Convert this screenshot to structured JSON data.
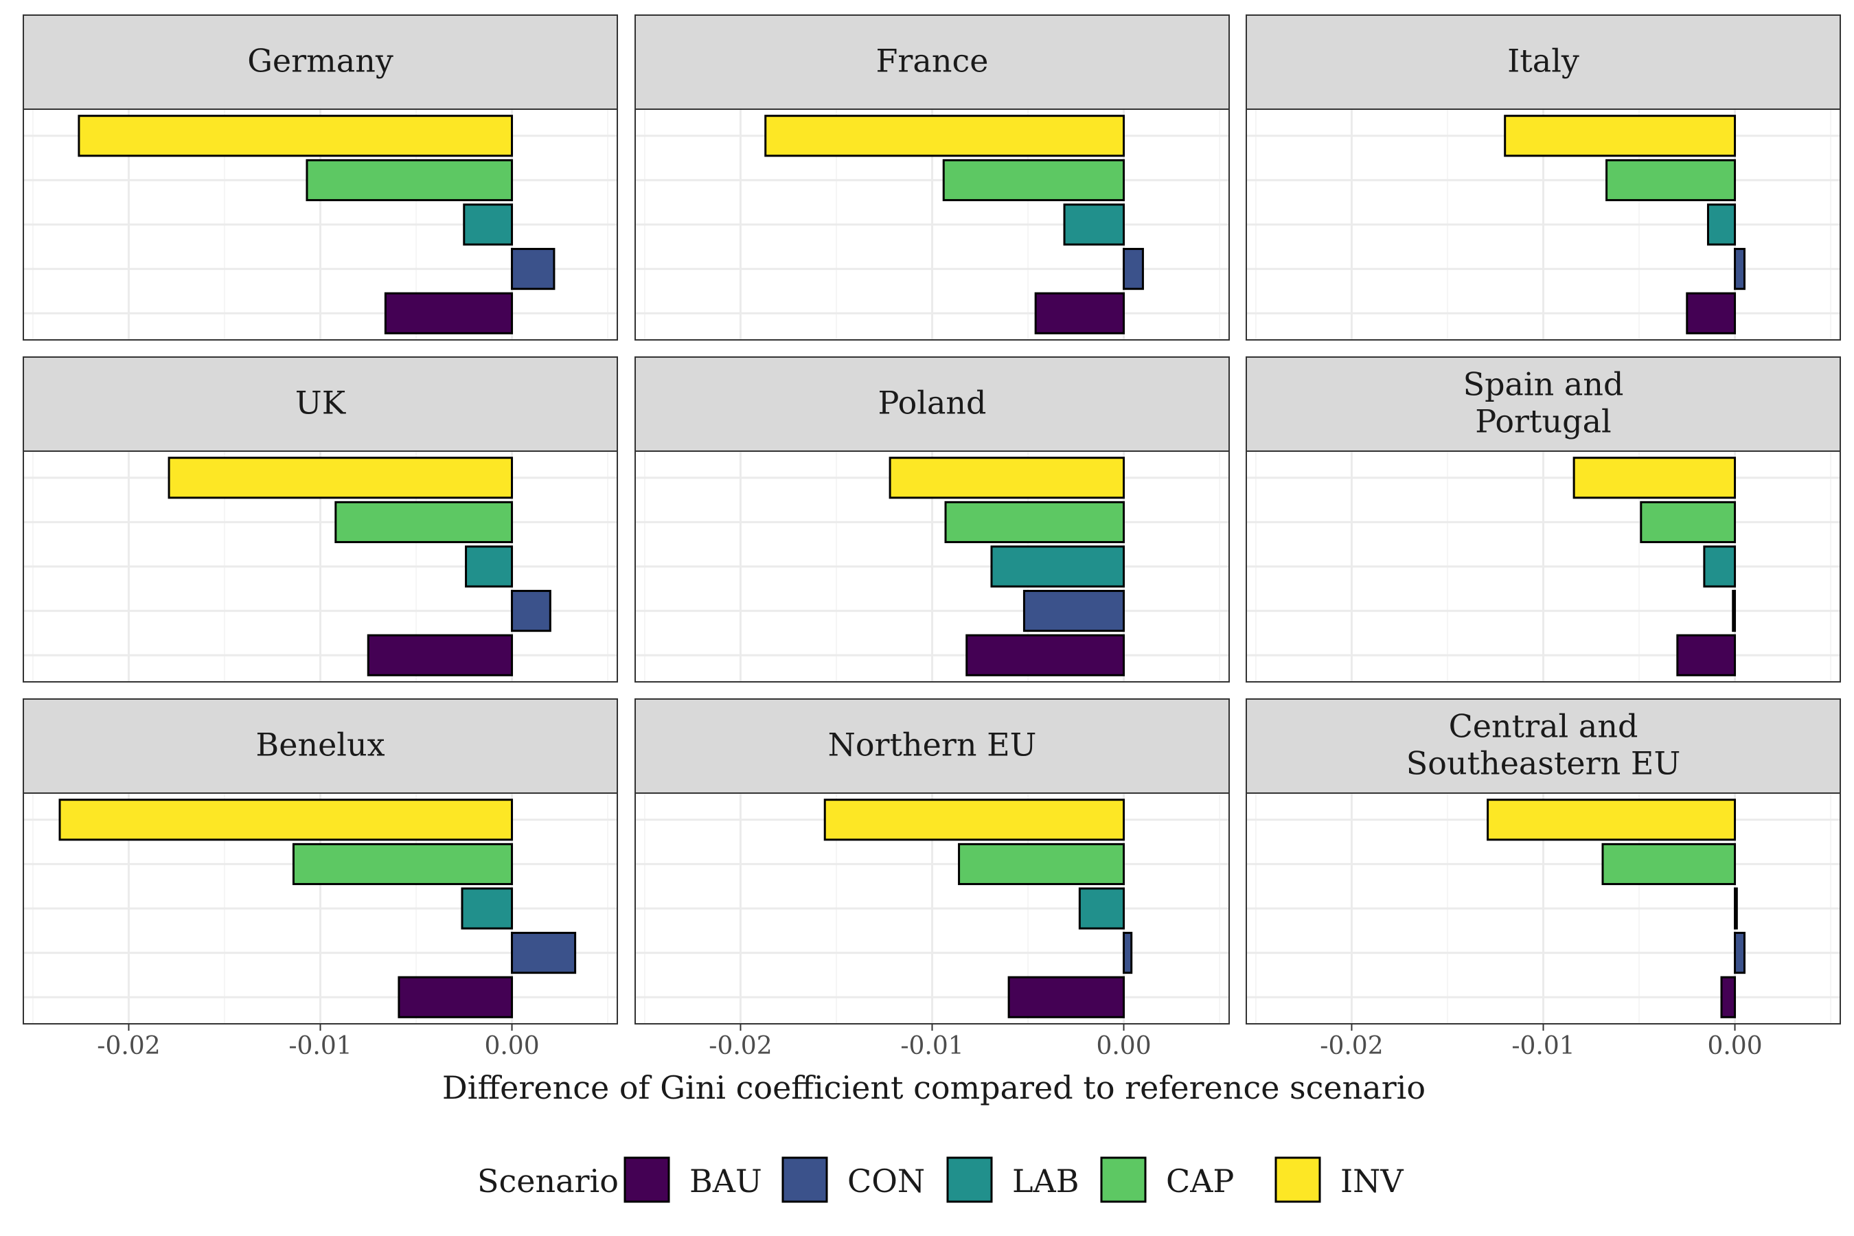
{
  "chart_data": {
    "type": "bar",
    "orientation": "horizontal",
    "facet_layout": "3x3",
    "xlabel": "Difference of Gini coefficient compared to reference scenario",
    "ylabel": "",
    "xlim": [
      -0.0255,
      0.0055
    ],
    "xticks": [
      -0.02,
      -0.01,
      0.0
    ],
    "xtick_labels": [
      "-0.02",
      "-0.01",
      "0.00"
    ],
    "grid": true,
    "legend": {
      "title": "Scenario",
      "position": "bottom",
      "entries": [
        "BAU",
        "CON",
        "LAB",
        "CAP",
        "INV"
      ]
    },
    "scenario_order_top_to_bottom": [
      "INV",
      "CAP",
      "LAB",
      "CON",
      "BAU"
    ],
    "colors": {
      "BAU": "#440154",
      "CON": "#3B528B",
      "LAB": "#21908C",
      "CAP": "#5DC863",
      "INV": "#FDE725"
    },
    "panels": [
      {
        "title": "Germany",
        "values": {
          "INV": -0.0226,
          "CAP": -0.0107,
          "LAB": -0.0025,
          "CON": 0.0022,
          "BAU": -0.0066
        }
      },
      {
        "title": "France",
        "values": {
          "INV": -0.0187,
          "CAP": -0.0094,
          "LAB": -0.0031,
          "CON": 0.001,
          "BAU": -0.0046
        }
      },
      {
        "title": "Italy",
        "values": {
          "INV": -0.012,
          "CAP": -0.0067,
          "LAB": -0.0014,
          "CON": 0.0005,
          "BAU": -0.0025
        }
      },
      {
        "title": "UK",
        "values": {
          "INV": -0.0179,
          "CAP": -0.0092,
          "LAB": -0.0024,
          "CON": 0.002,
          "BAU": -0.0075
        }
      },
      {
        "title": "Poland",
        "values": {
          "INV": -0.0122,
          "CAP": -0.0093,
          "LAB": -0.0069,
          "CON": -0.0052,
          "BAU": -0.0082
        }
      },
      {
        "title": "Spain and\nPortugal",
        "values": {
          "INV": -0.0084,
          "CAP": -0.0049,
          "LAB": -0.0016,
          "CON": -0.0001,
          "BAU": -0.003
        }
      },
      {
        "title": "Benelux",
        "values": {
          "INV": -0.0236,
          "CAP": -0.0114,
          "LAB": -0.0026,
          "CON": 0.0033,
          "BAU": -0.0059
        }
      },
      {
        "title": "Northern EU",
        "values": {
          "INV": -0.0156,
          "CAP": -0.0086,
          "LAB": -0.0023,
          "CON": 0.0004,
          "BAU": -0.006
        }
      },
      {
        "title": "Central and\nSoutheastern EU",
        "values": {
          "INV": -0.0129,
          "CAP": -0.0069,
          "LAB": 0.0001,
          "CON": 0.0005,
          "BAU": -0.0007
        }
      }
    ]
  }
}
